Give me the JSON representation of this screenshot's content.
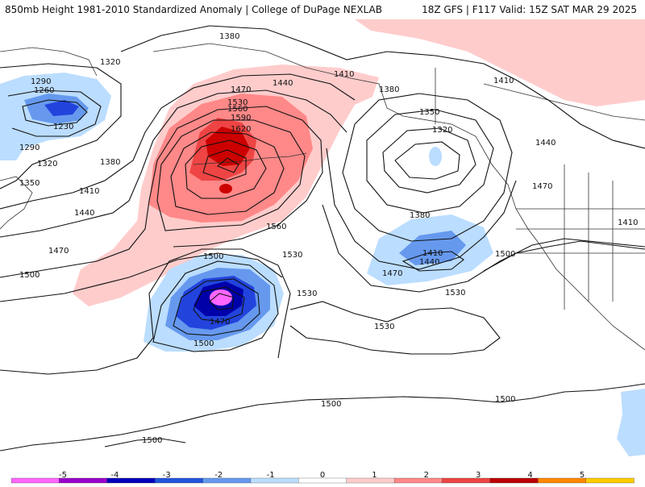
{
  "header": {
    "title_left": "850mb Height 1981-2010 Standardized Anomaly | College of DuPage NEXLAB",
    "title_right": "18Z GFS | F117 Valid: 15Z SAT MAR 29 2025"
  },
  "contour_labels": [
    "1380",
    "1320",
    "1290",
    "1260",
    "1230",
    "1290",
    "1320",
    "1350",
    "1380",
    "1410",
    "1440",
    "1470",
    "1500",
    "1470",
    "1530",
    "1560",
    "1590",
    "1620",
    "1440",
    "1410",
    "1380",
    "1350",
    "1320",
    "1410",
    "1440",
    "1470",
    "1410",
    "1380",
    "1410",
    "1440",
    "1470",
    "1500",
    "1560",
    "1530",
    "1500",
    "1470",
    "1500",
    "1530",
    "1530",
    "1530",
    "1500",
    "1500",
    "1500"
  ],
  "colorbar": {
    "ticks": [
      "-5",
      "-4",
      "-3",
      "-2",
      "-1",
      "0",
      "1",
      "2",
      "3",
      "4",
      "5"
    ],
    "colors": [
      "#ff66ff",
      "#9900cc",
      "#0000bb",
      "#2255dd",
      "#6699ee",
      "#bbddff",
      "#ffffff",
      "#ffcccc",
      "#ff8888",
      "#ee4444",
      "#bb0000",
      "#ff8800",
      "#ffcc00"
    ]
  },
  "legend_colors": {
    "neg_light": "#bbddff",
    "neg_mid": "#6699ee",
    "neg_strong": "#2244dd",
    "neg_deep": "#0000aa",
    "neg_extreme": "#ff66ff",
    "pos_light": "#ffcccc",
    "pos_mid": "#ff8888",
    "pos_strong": "#ee4444",
    "pos_deep": "#cc0000"
  }
}
